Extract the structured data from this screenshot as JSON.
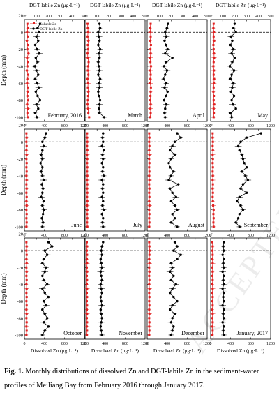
{
  "figure": {
    "caption_label": "Fig. 1.",
    "caption_text": "Monthly distributions of dissolved Zn and DGT-labile Zn in the sediment-water profiles of Meiliang Bay from February 2016 through January 2017.",
    "top_axis_label": "DGT-labile  Zn (μg·L⁻¹)",
    "bottom_axis_label": "Dissolved Zn (μg·L⁻¹)",
    "y_axis_label": "Depth (mm)",
    "legend": [
      "Soluble Zn",
      "DGT-labile Zn"
    ],
    "watermark": "ACCEPTED MANUSCRIPT",
    "colors": {
      "soluble": "#e02020",
      "dgt": "#000000",
      "sediment_line": "#000000"
    }
  },
  "chart_data": {
    "type": "line",
    "layout": "4x3 small multiples",
    "y_axis": {
      "label": "Depth (mm)",
      "range": [
        -105,
        15
      ],
      "ticks": [
        20,
        0,
        -20,
        -40,
        -60,
        -80,
        -100
      ]
    },
    "x_top": {
      "label": "DGT-labile  Zn (μg·L⁻¹)",
      "range": [
        0,
        500
      ],
      "ticks": [
        0,
        100,
        200,
        300,
        400,
        500
      ]
    },
    "x_bottom": {
      "label": "Dissolved Zn (μg·L⁻¹)",
      "range": [
        0,
        1200
      ],
      "ticks": [
        0,
        400,
        800,
        1200
      ]
    },
    "sediment_water_interface": 0,
    "depths": [
      10,
      5,
      0,
      -5,
      -10,
      -15,
      -20,
      -25,
      -30,
      -35,
      -40,
      -45,
      -50,
      -55,
      -60,
      -65,
      -70,
      -75,
      -80,
      -85,
      -90,
      -95,
      -100
    ],
    "panels": [
      {
        "month": "February, 2016",
        "series": [
          {
            "name": "Soluble Zn",
            "axis": "bottom",
            "values": [
              60,
              70,
              55,
              65,
              50,
              70,
              60,
              80,
              55,
              65,
              60,
              50,
              75,
              60,
              55,
              70,
              65,
              60,
              75,
              55,
              65,
              60,
              70
            ]
          },
          {
            "name": "DGT-labile Zn",
            "axis": "top",
            "values": [
              130,
              110,
              120,
              100,
              115,
              90,
              105,
              125,
              95,
              110,
              85,
              100,
              115,
              90,
              105,
              120,
              95,
              110,
              130,
              100,
              115,
              90,
              105
            ]
          }
        ]
      },
      {
        "month": "March",
        "series": [
          {
            "name": "Soluble Zn",
            "axis": "bottom",
            "values": [
              50,
              55,
              60,
              50,
              65,
              55,
              60,
              50,
              55,
              70,
              60,
              55,
              65,
              50,
              60,
              55,
              65,
              60,
              55,
              50,
              60,
              65,
              80
            ]
          },
          {
            "name": "DGT-labile Zn",
            "axis": "top",
            "values": [
              120,
              125,
              110,
              115,
              120,
              110,
              125,
              115,
              120,
              110,
              115,
              120,
              110,
              125,
              115,
              120,
              110,
              115,
              125,
              120,
              115,
              120,
              160
            ]
          }
        ]
      },
      {
        "month": "April",
        "series": [
          {
            "name": "Soluble Zn",
            "axis": "bottom",
            "values": [
              70,
              60,
              65,
              70,
              60,
              75,
              65,
              70,
              60,
              65,
              75,
              60,
              70,
              65,
              60,
              75,
              70,
              65,
              60,
              70,
              65,
              70,
              60
            ]
          },
          {
            "name": "DGT-labile Zn",
            "axis": "top",
            "values": [
              175,
              165,
              150,
              160,
              145,
              155,
              170,
              150,
              210,
              160,
              140,
              165,
              150,
              135,
              160,
              145,
              170,
              155,
              140,
              160,
              150,
              145,
              150
            ]
          }
        ]
      },
      {
        "month": "May",
        "series": [
          {
            "name": "Soluble Zn",
            "axis": "bottom",
            "values": [
              60,
              55,
              65,
              60,
              70,
              55,
              60,
              65,
              70,
              60,
              55,
              65,
              60,
              70,
              65,
              60,
              55,
              65,
              60,
              70,
              60,
              65,
              60
            ]
          },
          {
            "name": "DGT-labile Zn",
            "axis": "top",
            "values": [
              200,
              190,
              210,
              170,
              180,
              165,
              190,
              175,
              200,
              180,
              160,
              195,
              175,
              165,
              190,
              180,
              170,
              195,
              175,
              185,
              210,
              165,
              175
            ]
          }
        ]
      },
      {
        "month": "June",
        "series": [
          {
            "name": "Soluble Zn",
            "axis": "bottom",
            "values": [
              40,
              45,
              40,
              45,
              40,
              45,
              40,
              45,
              40,
              45,
              40,
              45,
              40,
              45,
              40,
              45,
              40,
              45,
              40,
              45,
              40,
              45,
              40
            ]
          },
          {
            "name": "DGT-labile Zn",
            "axis": "top",
            "values": [
              180,
              170,
              150,
              160,
              150,
              140,
              150,
              135,
              150,
              140,
              150,
              160,
              145,
              155,
              150,
              140,
              160,
              150,
              165,
              155,
              145,
              155,
              150
            ]
          }
        ]
      },
      {
        "month": "July",
        "series": [
          {
            "name": "Soluble Zn",
            "axis": "bottom",
            "values": [
              40,
              40,
              45,
              40,
              45,
              40,
              45,
              40,
              45,
              40,
              45,
              40,
              45,
              40,
              45,
              40,
              45,
              40,
              45,
              40,
              45,
              40,
              45
            ]
          },
          {
            "name": "DGT-labile Zn",
            "axis": "top",
            "values": [
              150,
              145,
              150,
              140,
              155,
              145,
              150,
              140,
              150,
              145,
              155,
              140,
              150,
              145,
              150,
              140,
              150,
              145,
              155,
              140,
              150,
              145,
              150
            ]
          }
        ]
      },
      {
        "month": "August",
        "series": [
          {
            "name": "Soluble Zn",
            "axis": "bottom",
            "values": [
              40,
              45,
              40,
              45,
              40,
              45,
              40,
              45,
              40,
              45,
              40,
              45,
              40,
              45,
              40,
              45,
              40,
              45,
              40,
              45,
              40,
              45,
              40
            ]
          },
          {
            "name": "DGT-labile Zn",
            "axis": "top",
            "values": [
              250,
              280,
              230,
              210,
              190,
              230,
              200,
              180,
              190,
              220,
              200,
              180,
              260,
              190,
              210,
              240,
              200,
              230,
              250,
              210,
              230,
              200,
              250
            ]
          }
        ]
      },
      {
        "month": "September",
        "series": [
          {
            "name": "Soluble Zn",
            "axis": "bottom",
            "values": [
              40,
              40,
              45,
              40,
              45,
              40,
              45,
              40,
              45,
              40,
              45,
              40,
              45,
              40,
              45,
              40,
              45,
              50,
              60,
              55,
              60,
              55,
              60
            ]
          },
          {
            "name": "DGT-labile Zn",
            "axis": "top",
            "values": [
              420,
              300,
              250,
              230,
              240,
              260,
              270,
              280,
              300,
              260,
              290,
              310,
              270,
              250,
              300,
              240,
              220,
              250,
              270,
              240,
              230,
              210,
              240
            ]
          }
        ]
      },
      {
        "month": "October",
        "series": [
          {
            "name": "Soluble Zn",
            "axis": "bottom",
            "values": [
              40,
              45,
              40,
              45,
              40,
              45,
              40,
              45,
              40,
              45,
              40,
              45,
              40,
              45,
              40,
              45,
              40,
              45,
              40,
              45,
              40,
              45,
              40
            ]
          },
          {
            "name": "DGT-labile Zn",
            "axis": "top",
            "values": [
              200,
              230,
              170,
              190,
              160,
              150,
              180,
              170,
              150,
              160,
              190,
              150,
              170,
              200,
              160,
              180,
              150,
              170,
              190,
              160,
              200,
              170,
              150
            ]
          }
        ]
      },
      {
        "month": "November",
        "series": [
          {
            "name": "Soluble Zn",
            "axis": "bottom",
            "values": [
              35,
              40,
              35,
              40,
              35,
              40,
              35,
              40,
              35,
              40,
              35,
              40,
              35,
              40,
              35,
              40,
              35,
              40,
              35,
              40,
              35,
              40,
              35
            ]
          },
          {
            "name": "DGT-labile Zn",
            "axis": "top",
            "values": [
              150,
              140,
              135,
              140,
              130,
              135,
              140,
              130,
              135,
              140,
              130,
              135,
              140,
              130,
              135,
              140,
              130,
              135,
              140,
              135,
              130,
              135,
              140
            ]
          }
        ]
      },
      {
        "month": "December",
        "series": [
          {
            "name": "Soluble Zn",
            "axis": "bottom",
            "values": [
              40,
              45,
              50,
              45,
              40,
              45,
              40,
              45,
              40,
              45,
              40,
              45,
              40,
              45,
              40,
              45,
              40,
              45,
              40,
              45,
              40,
              45,
              40
            ]
          },
          {
            "name": "DGT-labile Zn",
            "axis": "top",
            "values": [
              230,
              250,
              220,
              280,
              250,
              200,
              210,
              190,
              220,
              200,
              240,
              210,
              190,
              220,
              250,
              210,
              190,
              230,
              210,
              200,
              220,
              210,
              200
            ]
          }
        ]
      },
      {
        "month": "January, 2017",
        "series": [
          {
            "name": "Soluble Zn",
            "axis": "bottom",
            "values": [
              35,
              40,
              35,
              40,
              35,
              40,
              35,
              40,
              35,
              40,
              35,
              40,
              35,
              40,
              35,
              40,
              35,
              40,
              35,
              40,
              35,
              40,
              35
            ]
          },
          {
            "name": "DGT-labile Zn",
            "axis": "top",
            "values": [
              110,
              105,
              110,
              100,
              110,
              105,
              110,
              100,
              110,
              105,
              110,
              100,
              110,
              105,
              110,
              100,
              110,
              105,
              110,
              100,
              110,
              105,
              110
            ]
          }
        ]
      }
    ]
  }
}
